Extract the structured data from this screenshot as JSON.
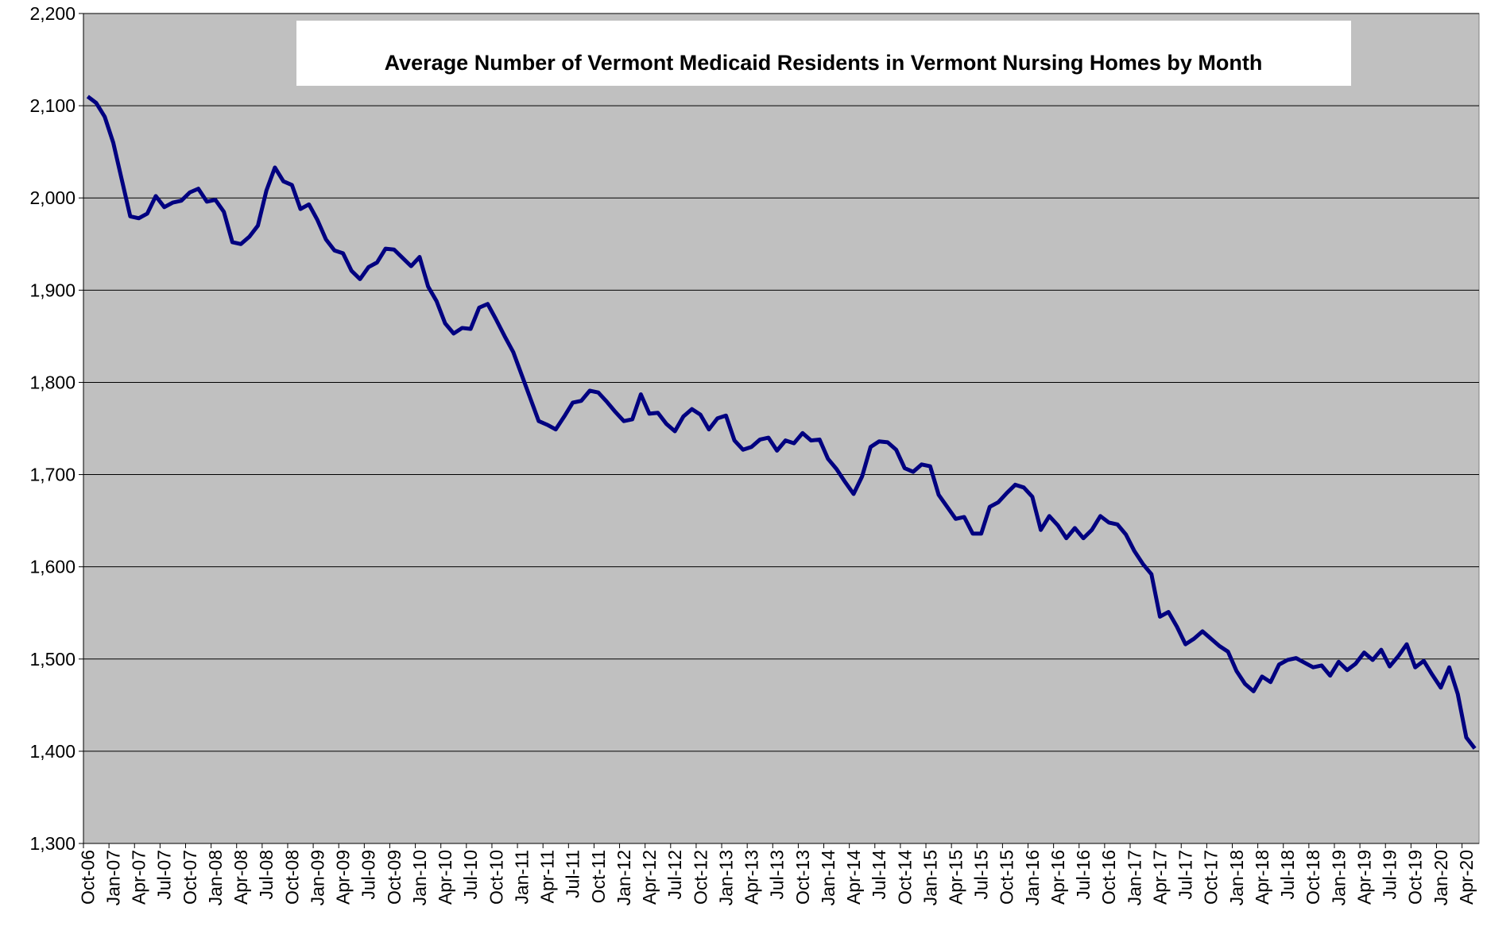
{
  "chart_data": {
    "type": "line",
    "title": "Average Number of Vermont Medicaid Residents in Vermont Nursing Homes by Month",
    "categories": [
      "Oct-06",
      null,
      null,
      "Jan-07",
      null,
      null,
      "Apr-07",
      null,
      null,
      "Jul-07",
      null,
      null,
      "Oct-07",
      null,
      null,
      "Jan-08",
      null,
      null,
      "Apr-08",
      null,
      null,
      "Jul-08",
      null,
      null,
      "Oct-08",
      null,
      null,
      "Jan-09",
      null,
      null,
      "Apr-09",
      null,
      null,
      "Jul-09",
      null,
      null,
      "Oct-09",
      null,
      null,
      "Jan-10",
      null,
      null,
      "Apr-10",
      null,
      null,
      "Jul-10",
      null,
      null,
      "Oct-10",
      null,
      null,
      "Jan-11",
      null,
      null,
      "Apr-11",
      null,
      null,
      "Jul-11",
      null,
      null,
      "Oct-11",
      null,
      null,
      "Jan-12",
      null,
      null,
      "Apr-12",
      null,
      null,
      "Jul-12",
      null,
      null,
      "Oct-12",
      null,
      null,
      "Jan-13",
      null,
      null,
      "Apr-13",
      null,
      null,
      "Jul-13",
      null,
      null,
      "Oct-13",
      null,
      null,
      "Jan-14",
      null,
      null,
      "Apr-14",
      null,
      null,
      "Jul-14",
      null,
      null,
      "Oct-14",
      null,
      null,
      "Jan-15",
      null,
      null,
      "Apr-15",
      null,
      null,
      "Jul-15",
      null,
      null,
      "Oct-15",
      null,
      null,
      "Jan-16",
      null,
      null,
      "Apr-16",
      null,
      null,
      "Jul-16",
      null,
      null,
      "Oct-16",
      null,
      null,
      "Jan-17",
      null,
      null,
      "Apr-17",
      null,
      null,
      "Jul-17",
      null,
      null,
      "Oct-17",
      null,
      null,
      "Jan-18",
      null,
      null,
      "Apr-18",
      null,
      null,
      "Jul-18",
      null,
      null,
      "Oct-18",
      null,
      null,
      "Jan-19",
      null,
      null,
      "Apr-19",
      null,
      null,
      "Jul-19",
      null,
      null,
      "Oct-19",
      null,
      null,
      "Jan-20",
      null,
      null,
      "Apr-20",
      null
    ],
    "series": [
      {
        "name": "Average Number of Vermont Medicaid Residents",
        "color": "#000080",
        "values": [
          2110,
          2103,
          2088,
          2060,
          2020,
          1980,
          1978,
          1983,
          2002,
          1990,
          1995,
          1997,
          2006,
          2010,
          1996,
          1998,
          1985,
          1952,
          1950,
          1958,
          1970,
          2008,
          2033,
          2018,
          2014,
          1988,
          1993,
          1976,
          1955,
          1943,
          1940,
          1921,
          1912,
          1925,
          1930,
          1945,
          1944,
          1935,
          1926,
          1936,
          1904,
          1888,
          1864,
          1853,
          1859,
          1858,
          1881,
          1885,
          1868,
          1850,
          1833,
          1808,
          1783,
          1758,
          1754,
          1749,
          1763,
          1778,
          1780,
          1791,
          1789,
          1779,
          1768,
          1758,
          1760,
          1787,
          1766,
          1767,
          1755,
          1747,
          1763,
          1771,
          1765,
          1749,
          1761,
          1764,
          1737,
          1727,
          1730,
          1738,
          1740,
          1726,
          1737,
          1734,
          1745,
          1737,
          1738,
          1717,
          1706,
          1692,
          1679,
          1698,
          1730,
          1736,
          1735,
          1727,
          1707,
          1703,
          1711,
          1709,
          1678,
          1665,
          1652,
          1654,
          1636,
          1636,
          1665,
          1670,
          1680,
          1689,
          1686,
          1676,
          1640,
          1655,
          1645,
          1631,
          1642,
          1631,
          1640,
          1655,
          1648,
          1646,
          1635,
          1617,
          1603,
          1592,
          1546,
          1551,
          1535,
          1516,
          1522,
          1530,
          1522,
          1514,
          1508,
          1487,
          1473,
          1465,
          1481,
          1475,
          1494,
          1499,
          1501,
          1496,
          1491,
          1493,
          1482,
          1497,
          1488,
          1495,
          1507,
          1499,
          1510,
          1492,
          1503,
          1516,
          1491,
          1498,
          1483,
          1469,
          1491,
          1462,
          1415,
          1403
        ]
      }
    ],
    "ylim": [
      1300,
      2200
    ],
    "yticks": [
      {
        "value": 1300,
        "label": "1,300"
      },
      {
        "value": 1400,
        "label": "1,400"
      },
      {
        "value": 1500,
        "label": "1,500"
      },
      {
        "value": 1600,
        "label": "1,600"
      },
      {
        "value": 1700,
        "label": "1,700"
      },
      {
        "value": 1800,
        "label": "1,800"
      },
      {
        "value": 1900,
        "label": "1,900"
      },
      {
        "value": 2000,
        "label": "2,000"
      },
      {
        "value": 2100,
        "label": "2,100"
      },
      {
        "value": 2200,
        "label": "2,200"
      }
    ],
    "grid": true
  }
}
